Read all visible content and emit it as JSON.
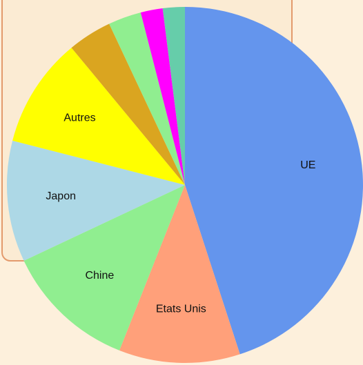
{
  "chart_data": {
    "type": "pie",
    "categories": [
      "UE",
      "Etats Unis",
      "Chine",
      "Japon",
      "Autres",
      null,
      null,
      null,
      null
    ],
    "values": [
      45,
      11,
      12,
      11,
      10,
      4,
      3,
      2,
      2
    ],
    "colors": [
      "#6495ed",
      "#ffa07a",
      "#90ee90",
      "#add8e6",
      "#ffff00",
      "#daa520",
      "#90ee90",
      "#ff00ff",
      "#66cdaa"
    ],
    "start_angle": "top",
    "direction": "clockwise"
  }
}
